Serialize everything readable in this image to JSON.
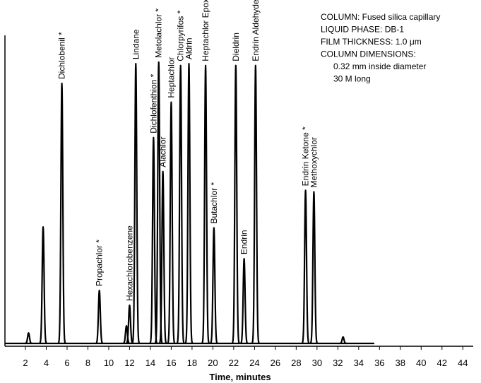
{
  "chart_data": {
    "type": "chromatogram",
    "xlabel": "Time, minutes",
    "xlim": [
      0,
      45
    ],
    "xticks": [
      2,
      4,
      6,
      8,
      10,
      12,
      14,
      16,
      18,
      20,
      22,
      24,
      26,
      28,
      30,
      32,
      34,
      36,
      38,
      40,
      42,
      44
    ],
    "ylim": [
      0,
      100
    ],
    "trace_range": [
      0,
      35.5
    ],
    "color": "#000000",
    "peaks": {
      "x": [
        2.3,
        3.7,
        5.5,
        9.1,
        11.7,
        12.0,
        12.6,
        14.3,
        14.8,
        15.2,
        16.0,
        16.9,
        17.7,
        19.3,
        20.1,
        22.2,
        23.0,
        24.1,
        28.9,
        29.7,
        32.5
      ],
      "values": [
        3.4,
        37.8,
        84.4,
        17.2,
        5.7,
        12.4,
        90.8,
        66.8,
        91.3,
        55.8,
        78.3,
        90.2,
        90.8,
        90.2,
        37.5,
        90.2,
        27.5,
        90.2,
        49.7,
        49.2,
        2.1
      ],
      "labels": [
        null,
        null,
        "Dichlobenil *",
        "Propachlor *",
        null,
        "Hexachlorobenzene",
        "Lindane",
        "Dichlofenthion *",
        "Metolachlor *",
        "Alachlor",
        "Heptachlor",
        "Chlorpyrifos *",
        "Aldrin",
        "Heptachlor Epoxide",
        "Butachlor *",
        "Dieldrin",
        "Endrin",
        "Endrin Aldehyde *",
        "Endrin Ketone *",
        "Methoxychlor",
        null
      ]
    },
    "annotations": [
      "COLUMN: Fused silica capillary",
      "LIQUID PHASE: DB-1",
      "FILM THICKNESS: 1.0 μm",
      "COLUMN DIMENSIONS:",
      "0.32 mm inside diameter",
      "30 M long"
    ]
  }
}
